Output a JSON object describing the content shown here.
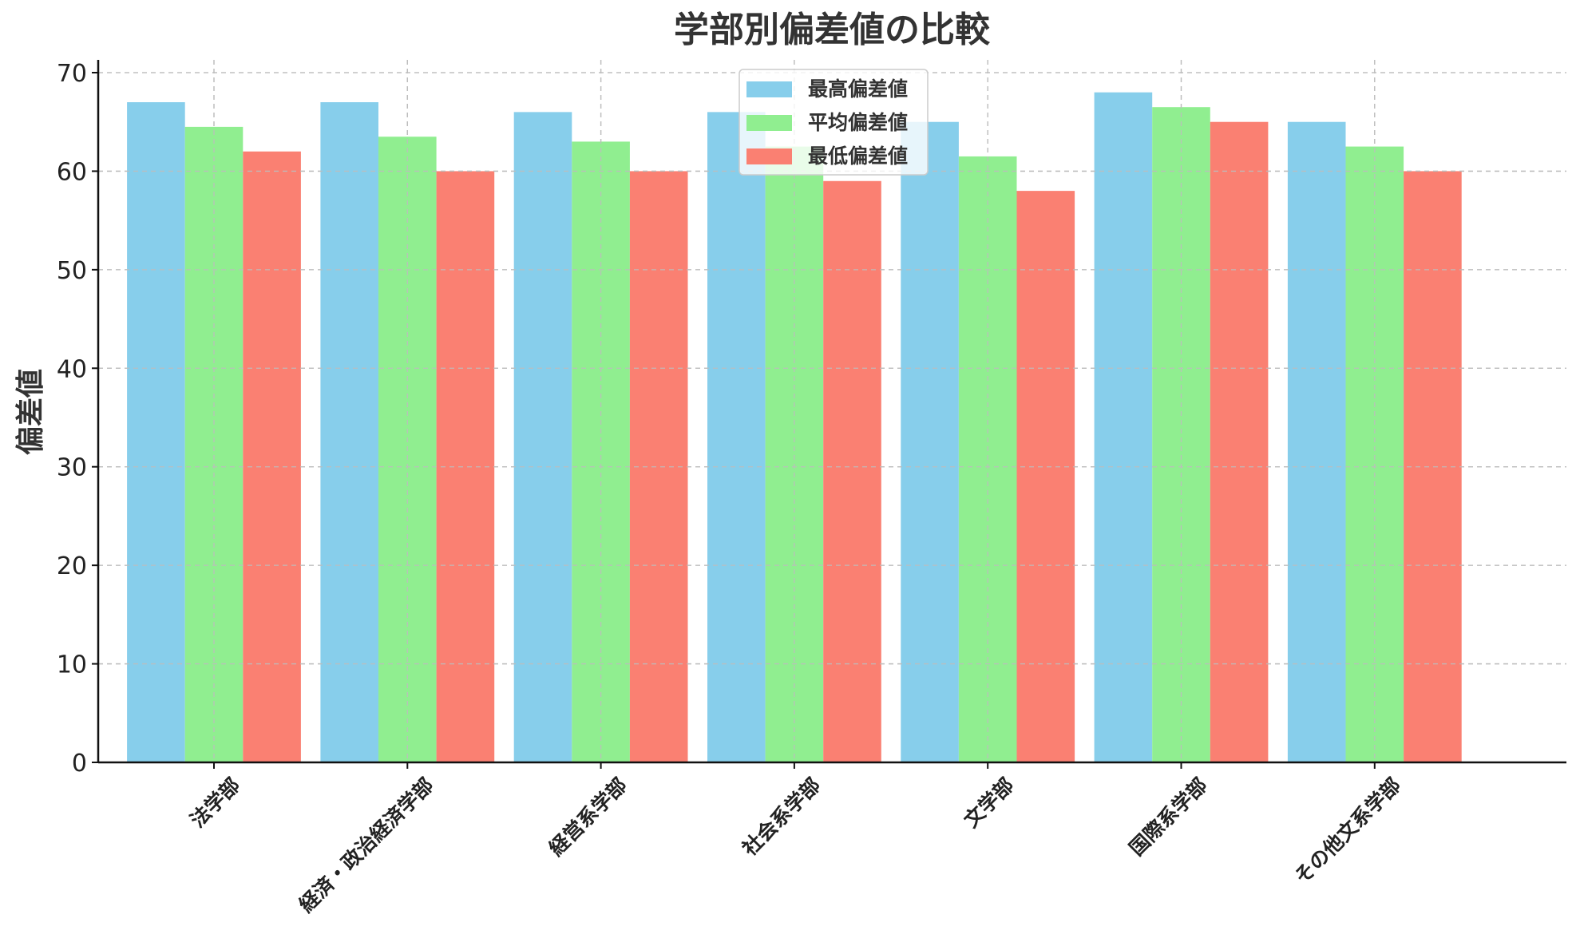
{
  "chart_data": {
    "type": "bar",
    "title": "学部別偏差値の比較",
    "xlabel": "",
    "ylabel": "偏差値",
    "ylim": [
      0,
      70
    ],
    "yticks": [
      0,
      10,
      20,
      30,
      40,
      50,
      60,
      70
    ],
    "grid": true,
    "legend_position": "top-center",
    "categories": [
      "法学部",
      "経済・政治経済学部",
      "経営系学部",
      "社会系学部",
      "文学部",
      "国際系学部",
      "その他文系学部"
    ],
    "series": [
      {
        "name": "最高偏差値",
        "color": "#87CEEB",
        "values": [
          67,
          67,
          66,
          66,
          65,
          68,
          65
        ]
      },
      {
        "name": "平均偏差値",
        "color": "#90EE90",
        "values": [
          64.5,
          63.5,
          63,
          62.5,
          61.5,
          66.5,
          62.5
        ]
      },
      {
        "name": "最低偏差値",
        "color": "#FA8072",
        "values": [
          62,
          60,
          60,
          59,
          58,
          65,
          60
        ]
      }
    ]
  }
}
